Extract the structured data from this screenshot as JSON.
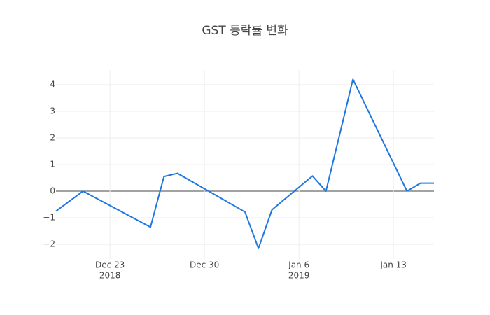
{
  "chart_data": {
    "type": "line",
    "title": "GST 등락률 변화",
    "x": [
      "2018-12-19",
      "2018-12-21",
      "2018-12-26",
      "2018-12-27",
      "2018-12-28",
      "2019-01-02",
      "2019-01-03",
      "2019-01-04",
      "2019-01-07",
      "2019-01-08",
      "2019-01-10",
      "2019-01-14",
      "2019-01-15",
      "2019-01-16"
    ],
    "values": [
      -0.75,
      0,
      -1.35,
      0.55,
      0.67,
      -0.78,
      -2.15,
      -0.7,
      0.57,
      0,
      4.2,
      0,
      0.3,
      0.3
    ],
    "color": "#1f77e0",
    "xlim": [
      "2018-12-19",
      "2019-01-16"
    ],
    "xticks": [
      {
        "value": "2018-12-23",
        "label": [
          "Dec 23",
          "2018"
        ]
      },
      {
        "value": "2018-12-30",
        "label": [
          "Dec 30"
        ]
      },
      {
        "value": "2019-01-06",
        "label": [
          "Jan 6",
          "2019"
        ]
      },
      {
        "value": "2019-01-13",
        "label": [
          "Jan 13"
        ]
      }
    ],
    "ylim": [
      -2.55,
      4.55
    ],
    "yticks": [
      {
        "value": -2,
        "label": "−2"
      },
      {
        "value": -1,
        "label": "−1"
      },
      0,
      1,
      2,
      3,
      4
    ],
    "grid": true
  }
}
